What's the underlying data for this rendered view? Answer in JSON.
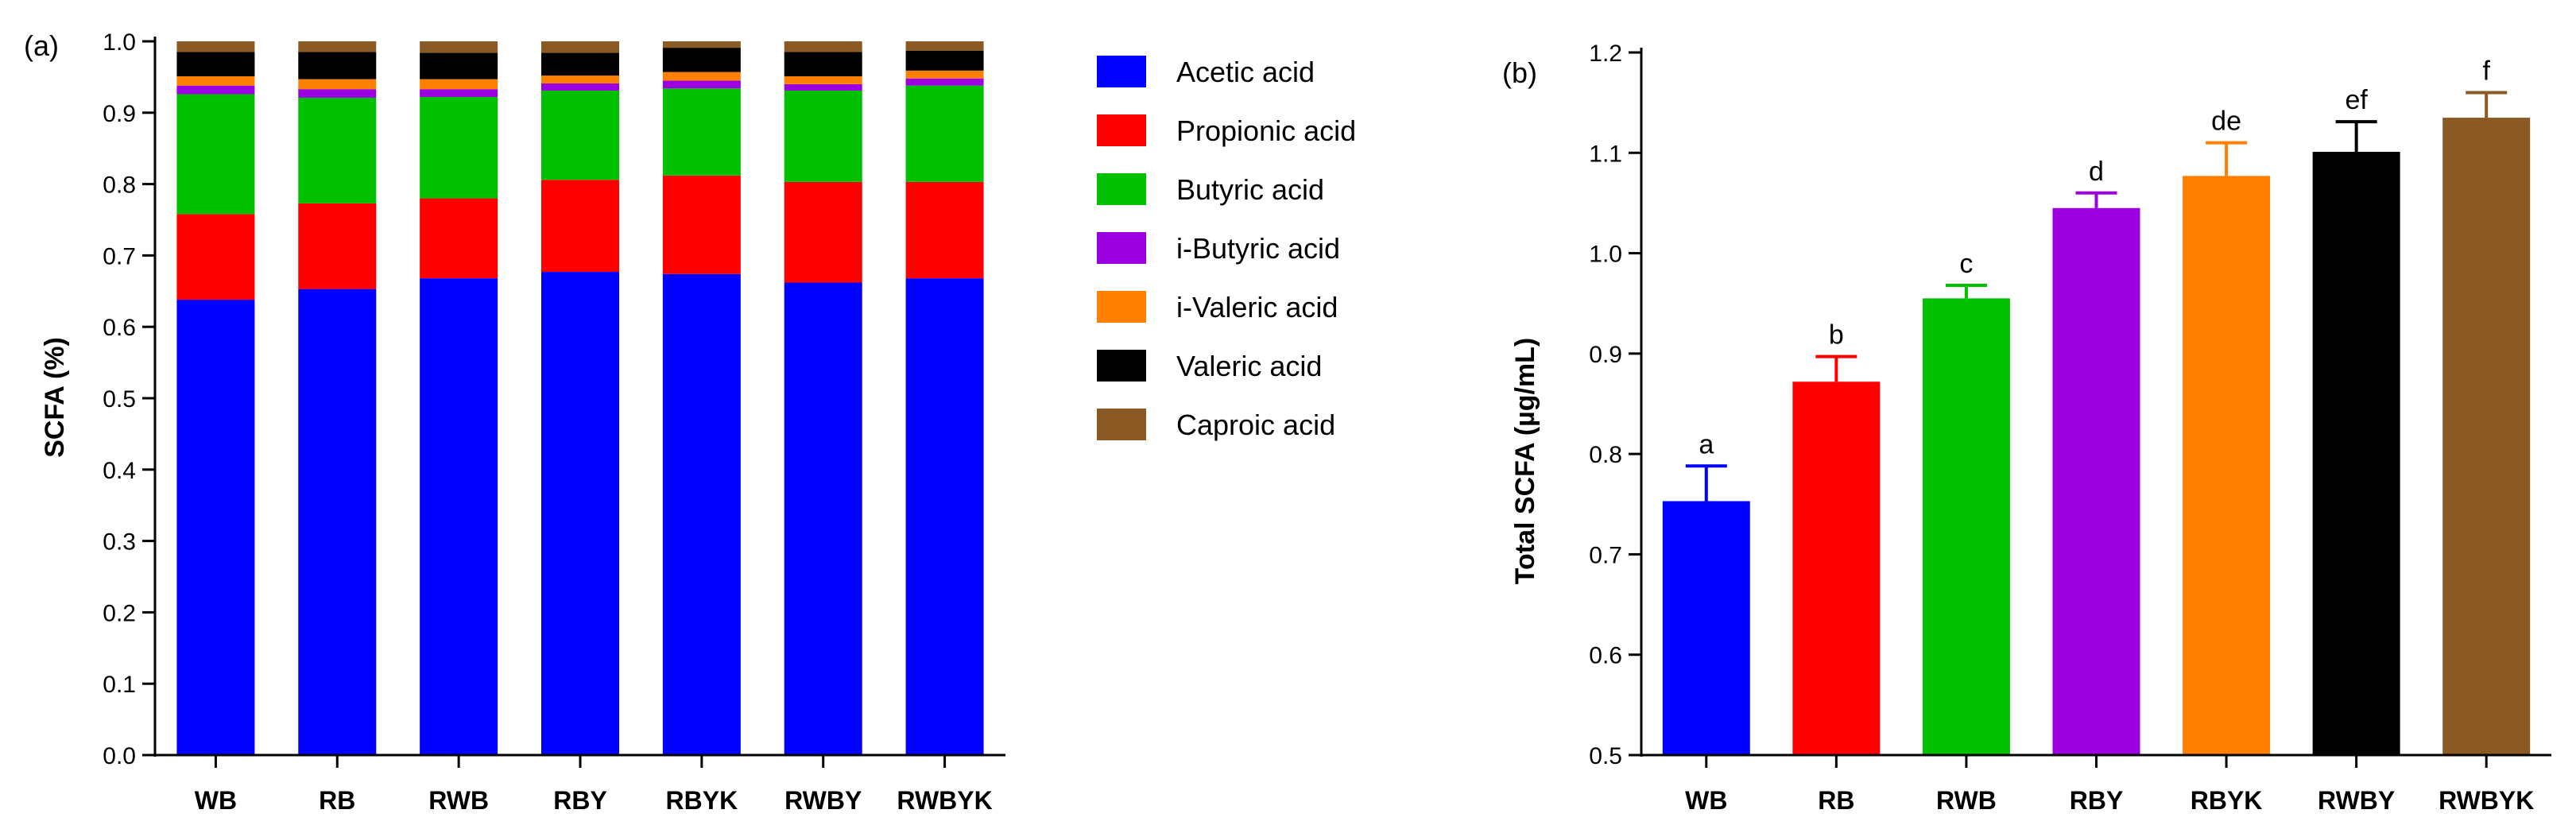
{
  "chart_data": [
    {
      "type": "bar",
      "stacked": true,
      "panel_label": "(a)",
      "title": "",
      "xlabel": "",
      "ylabel": "SCFA (%)",
      "ylim": [
        0,
        1.0
      ],
      "yticks": [
        "0.0",
        "0.1",
        "0.2",
        "0.3",
        "0.4",
        "0.5",
        "0.6",
        "0.7",
        "0.8",
        "0.9",
        "1.0"
      ],
      "categories": [
        "WB",
        "RB",
        "RWB",
        "RBY",
        "RBYK",
        "RWBY",
        "RWBYK"
      ],
      "series": [
        {
          "name": "Acetic acid",
          "color": "#0000ff",
          "values": [
            0.638,
            0.653,
            0.668,
            0.677,
            0.674,
            0.662,
            0.668
          ]
        },
        {
          "name": "Propionic acid",
          "color": "#ff0000",
          "values": [
            0.12,
            0.12,
            0.112,
            0.129,
            0.138,
            0.141,
            0.135
          ]
        },
        {
          "name": "Butyric acid",
          "color": "#00c000",
          "values": [
            0.168,
            0.148,
            0.142,
            0.125,
            0.122,
            0.128,
            0.135
          ]
        },
        {
          "name": "i-Butyric acid",
          "color": "#9b00e0",
          "values": [
            0.012,
            0.012,
            0.011,
            0.01,
            0.011,
            0.009,
            0.01
          ]
        },
        {
          "name": "i-Valeric acid",
          "color": "#ff8000",
          "values": [
            0.013,
            0.014,
            0.014,
            0.011,
            0.012,
            0.011,
            0.011
          ]
        },
        {
          "name": "Valeric acid",
          "color": "#000000",
          "values": [
            0.034,
            0.038,
            0.037,
            0.032,
            0.034,
            0.034,
            0.028
          ]
        },
        {
          "name": "Caproic acid",
          "color": "#8b5a24",
          "values": [
            0.015,
            0.015,
            0.016,
            0.016,
            0.009,
            0.015,
            0.013
          ]
        }
      ]
    },
    {
      "type": "bar",
      "panel_label": "(b)",
      "title": "",
      "xlabel": "",
      "ylabel": "Total SCFA (µg/mL)",
      "ylim": [
        0.5,
        1.2
      ],
      "yticks": [
        "0.5",
        "0.6",
        "0.7",
        "0.8",
        "0.9",
        "1.0",
        "1.1",
        "1.2"
      ],
      "categories": [
        "WB",
        "RB",
        "RWB",
        "RBY",
        "RBYK",
        "RWBY",
        "RWBYK"
      ],
      "values": [
        0.753,
        0.872,
        0.955,
        1.045,
        1.077,
        1.101,
        1.135
      ],
      "errors": [
        0.035,
        0.025,
        0.013,
        0.015,
        0.033,
        0.03,
        0.025
      ],
      "significance": [
        "a",
        "b",
        "c",
        "d",
        "de",
        "ef",
        "f"
      ],
      "colors": [
        "#0000ff",
        "#ff0000",
        "#00c000",
        "#9b00e0",
        "#ff8000",
        "#000000",
        "#8b5a24"
      ]
    }
  ]
}
